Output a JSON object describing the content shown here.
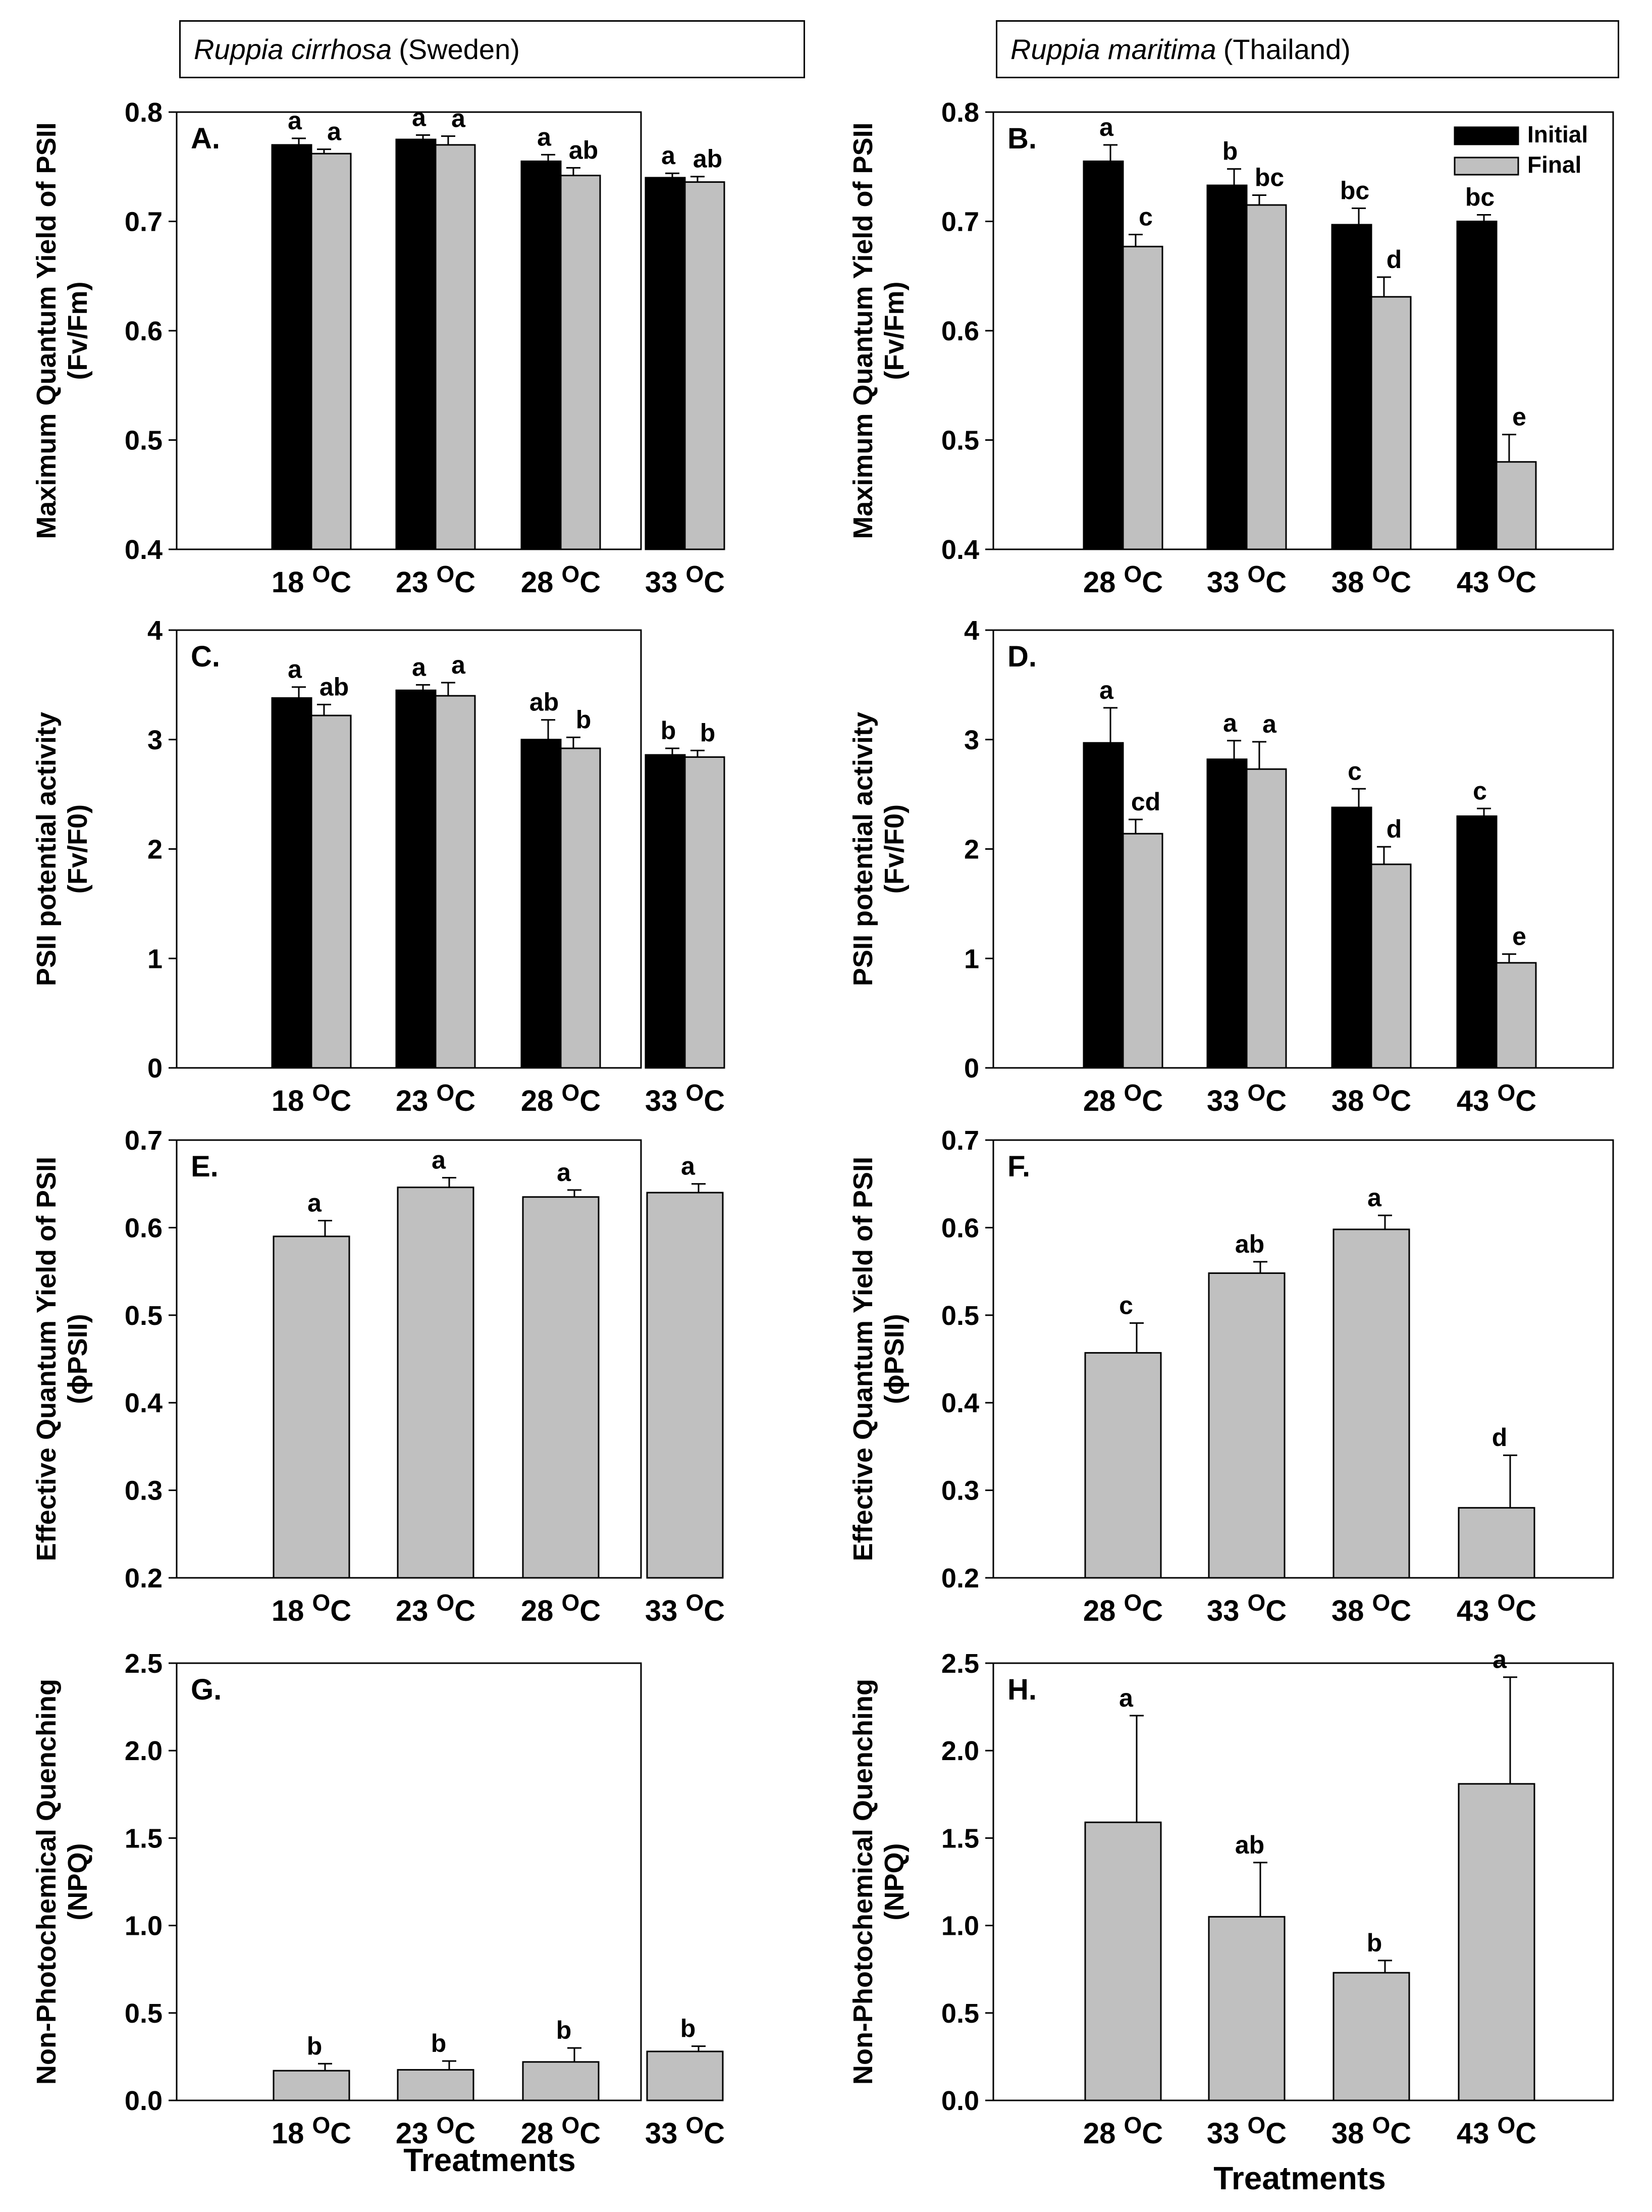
{
  "species_headers": [
    {
      "italic": "Ruppia cirrhosa",
      "country": "(Sweden)"
    },
    {
      "italic": "Ruppia maritima",
      "country": "(Thailand)"
    }
  ],
  "legend": {
    "initial": "Initial",
    "final": "Final"
  },
  "colors": {
    "initial": "#000000",
    "final": "#c0c0c0"
  },
  "x_axis_label": "Treatments",
  "chart_data": [
    {
      "panel": "A.",
      "type": "bar",
      "ylabel": "Maximum Quantum Yield of PSII",
      "ylabel2": "(Fv/Fm)",
      "ylim": [
        0.4,
        0.8
      ],
      "yticks": [
        "0.4",
        "0.5",
        "0.6",
        "0.7",
        "0.8"
      ],
      "categories": [
        "18 OC",
        "23 OC",
        "28 OC",
        "33 OC"
      ],
      "series": [
        {
          "values": [
            0.77,
            0.775,
            0.755,
            0.74
          ],
          "errors": [
            0.006,
            0.004,
            0.006,
            0.004
          ],
          "letters": [
            "a",
            "a",
            "a",
            "a"
          ]
        },
        {
          "values": [
            0.762,
            0.77,
            0.742,
            0.736
          ],
          "errors": [
            0.004,
            0.008,
            0.007,
            0.005
          ],
          "letters": [
            "a",
            "a",
            "ab",
            "ab"
          ]
        }
      ]
    },
    {
      "panel": "B.",
      "type": "bar",
      "ylabel": "Maximum Quantum Yield of PSII",
      "ylabel2": "(Fv/Fm)",
      "ylim": [
        0.4,
        0.8
      ],
      "yticks": [
        "0.4",
        "0.5",
        "0.6",
        "0.7",
        "0.8"
      ],
      "categories": [
        "28 OC",
        "33 OC",
        "38 OC",
        "43 OC"
      ],
      "legend": [
        "Initial",
        "Final"
      ],
      "series": [
        {
          "name": "Initial",
          "values": [
            0.755,
            0.733,
            0.697,
            0.7
          ],
          "errors": [
            0.015,
            0.015,
            0.015,
            0.006
          ],
          "letters": [
            "a",
            "b",
            "bc",
            "bc"
          ]
        },
        {
          "name": "Final",
          "values": [
            0.677,
            0.715,
            0.631,
            0.48
          ],
          "errors": [
            0.011,
            0.009,
            0.018,
            0.025
          ],
          "letters": [
            "c",
            "bc",
            "d",
            "e"
          ]
        }
      ]
    },
    {
      "panel": "C.",
      "type": "bar",
      "ylabel": "PSII potential activity",
      "ylabel2": "(Fv/F0)",
      "ylim": [
        0,
        4
      ],
      "yticks": [
        "0",
        "1",
        "2",
        "3",
        "4"
      ],
      "categories": [
        "18 OC",
        "23 OC",
        "28 OC",
        "33 OC"
      ],
      "series": [
        {
          "values": [
            3.38,
            3.45,
            3.0,
            2.86
          ],
          "errors": [
            0.1,
            0.05,
            0.18,
            0.06
          ],
          "letters": [
            "a",
            "a",
            "ab",
            "b"
          ]
        },
        {
          "values": [
            3.22,
            3.4,
            2.92,
            2.84
          ],
          "errors": [
            0.1,
            0.12,
            0.1,
            0.06
          ],
          "letters": [
            "ab",
            "a",
            "b",
            "b"
          ]
        }
      ]
    },
    {
      "panel": "D.",
      "type": "bar",
      "ylabel": "PSII potential activity",
      "ylabel2": "(Fv/F0)",
      "ylim": [
        0,
        4
      ],
      "yticks": [
        "0",
        "1",
        "2",
        "3",
        "4"
      ],
      "categories": [
        "28 OC",
        "33 OC",
        "38 OC",
        "43 OC"
      ],
      "series": [
        {
          "name": "Initial",
          "values": [
            2.97,
            2.82,
            2.38,
            2.3
          ],
          "errors": [
            0.32,
            0.17,
            0.17,
            0.07
          ],
          "letters": [
            "a",
            "a",
            "c",
            "c"
          ]
        },
        {
          "name": "Final",
          "values": [
            2.14,
            2.73,
            1.86,
            0.96
          ],
          "errors": [
            0.13,
            0.25,
            0.16,
            0.08
          ],
          "letters": [
            "cd",
            "a",
            "d",
            "e"
          ]
        }
      ]
    },
    {
      "panel": "E.",
      "type": "bar",
      "ylabel": "Effective Quantum Yield of PSII",
      "ylabel2": "(ϕPSII)",
      "ylim": [
        0.2,
        0.7
      ],
      "yticks": [
        "0.2",
        "0.3",
        "0.4",
        "0.5",
        "0.6",
        "0.7"
      ],
      "categories": [
        "18 OC",
        "23 OC",
        "28 OC",
        "33 OC"
      ],
      "series": [
        {
          "values": [
            0.59,
            0.646,
            0.635,
            0.64
          ],
          "errors": [
            0.018,
            0.011,
            0.008,
            0.01
          ],
          "letters": [
            "a",
            "a",
            "a",
            "a"
          ]
        }
      ]
    },
    {
      "panel": "F.",
      "type": "bar",
      "ylabel": "Effective Quantum Yield of PSII",
      "ylabel2": "(ϕPSII)",
      "ylim": [
        0.2,
        0.7
      ],
      "yticks": [
        "0.2",
        "0.3",
        "0.4",
        "0.5",
        "0.6",
        "0.7"
      ],
      "categories": [
        "28 OC",
        "33 OC",
        "38 OC",
        "43 OC"
      ],
      "series": [
        {
          "values": [
            0.457,
            0.548,
            0.598,
            0.28
          ],
          "errors": [
            0.034,
            0.013,
            0.016,
            0.06
          ],
          "letters": [
            "c",
            "ab",
            "a",
            "d"
          ]
        }
      ]
    },
    {
      "panel": "G.",
      "type": "bar",
      "ylabel": "Non-Photochemical Quenching",
      "ylabel2": "(NPQ)",
      "ylim": [
        0,
        2.5
      ],
      "yticks": [
        "0.0",
        "0.5",
        "1.0",
        "1.5",
        "2.0",
        "2.5"
      ],
      "categories": [
        "18 OC",
        "23 OC",
        "28 OC",
        "33 OC"
      ],
      "series": [
        {
          "values": [
            0.17,
            0.175,
            0.22,
            0.28
          ],
          "errors": [
            0.04,
            0.05,
            0.08,
            0.03
          ],
          "letters": [
            "b",
            "b",
            "b",
            "b"
          ]
        }
      ]
    },
    {
      "panel": "H.",
      "type": "bar",
      "ylabel": "Non-Photochemical Quenching",
      "ylabel2": "(NPQ)",
      "ylim": [
        0,
        2.5
      ],
      "yticks": [
        "0.0",
        "0.5",
        "1.0",
        "1.5",
        "2.0",
        "2.5"
      ],
      "categories": [
        "28 OC",
        "33 OC",
        "38 OC",
        "43 OC"
      ],
      "series": [
        {
          "values": [
            1.59,
            1.05,
            0.73,
            1.81
          ],
          "errors": [
            0.61,
            0.31,
            0.07,
            0.61
          ],
          "letters": [
            "a",
            "ab",
            "b",
            "a"
          ]
        }
      ]
    }
  ]
}
